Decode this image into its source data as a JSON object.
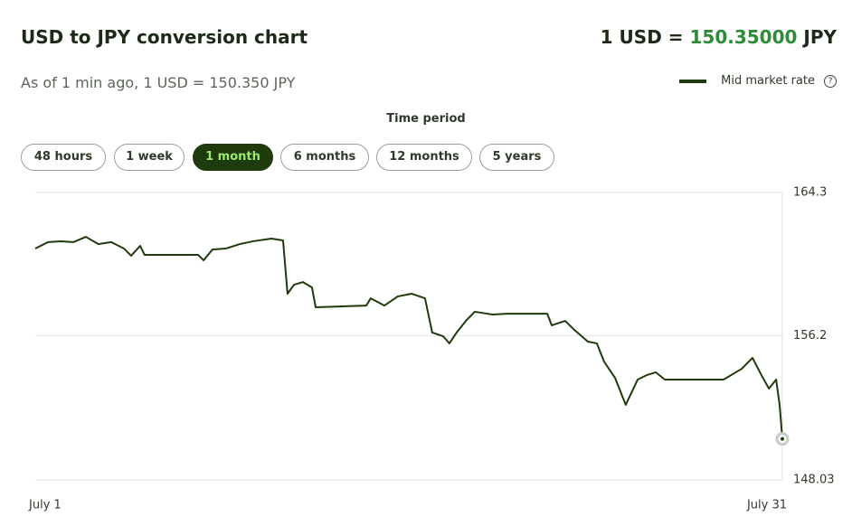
{
  "header": {
    "title": "USD to JPY conversion chart",
    "rate_prefix": "1 USD =",
    "rate_value": "150.35000",
    "rate_suffix": "JPY",
    "subtitle": "As of 1 min ago, 1 USD = 150.350 JPY"
  },
  "period": {
    "label": "Time period",
    "options": [
      "48 hours",
      "1 week",
      "1 month",
      "6 months",
      "12 months",
      "5 years"
    ]
  },
  "chart_data": {
    "type": "line",
    "x": [
      1.0,
      1.51,
      2.02,
      2.53,
      3.03,
      3.54,
      4.05,
      4.56,
      4.85,
      5.21,
      5.39,
      6.48,
      7.54,
      7.76,
      8.12,
      8.66,
      9.21,
      9.75,
      10.48,
      10.95,
      11.13,
      11.39,
      11.75,
      12.11,
      12.26,
      14.29,
      14.47,
      15.02,
      15.56,
      16.11,
      16.65,
      16.94,
      17.38,
      17.63,
      17.92,
      18.29,
      18.65,
      19.38,
      19.92,
      21.56,
      21.74,
      22.28,
      22.65,
      23.19,
      23.55,
      23.84,
      24.28,
      24.71,
      25.19,
      25.55,
      25.92,
      26.28,
      28.64,
      29.37,
      29.8,
      30.16,
      30.46,
      30.75,
      30.89,
      31.0
    ],
    "series": [
      {
        "name": "Mid market rate",
        "color": "#1f3a0c",
        "values": [
          161.13,
          161.49,
          161.54,
          161.49,
          161.79,
          161.38,
          161.49,
          161.13,
          160.72,
          161.28,
          160.77,
          160.77,
          160.77,
          160.46,
          161.08,
          161.13,
          161.38,
          161.54,
          161.69,
          161.59,
          158.57,
          159.08,
          159.23,
          158.93,
          157.8,
          157.9,
          158.31,
          157.9,
          158.42,
          158.57,
          158.31,
          156.37,
          156.16,
          155.76,
          156.37,
          157.03,
          157.55,
          157.39,
          157.44,
          157.44,
          156.78,
          157.03,
          156.52,
          155.86,
          155.76,
          154.73,
          153.81,
          152.28,
          153.71,
          153.96,
          154.12,
          153.71,
          153.71,
          154.32,
          154.94,
          153.96,
          153.2,
          153.71,
          152.28,
          150.35
        ]
      }
    ],
    "xlim": [
      1,
      31
    ],
    "xticks": [
      {
        "value": 1,
        "label": "July 1"
      },
      {
        "value": 31,
        "label": "July 31"
      }
    ],
    "ylim": [
      148.03,
      164.3
    ],
    "yticks": [
      148.03,
      156.2,
      164.3
    ],
    "grid": true
  }
}
